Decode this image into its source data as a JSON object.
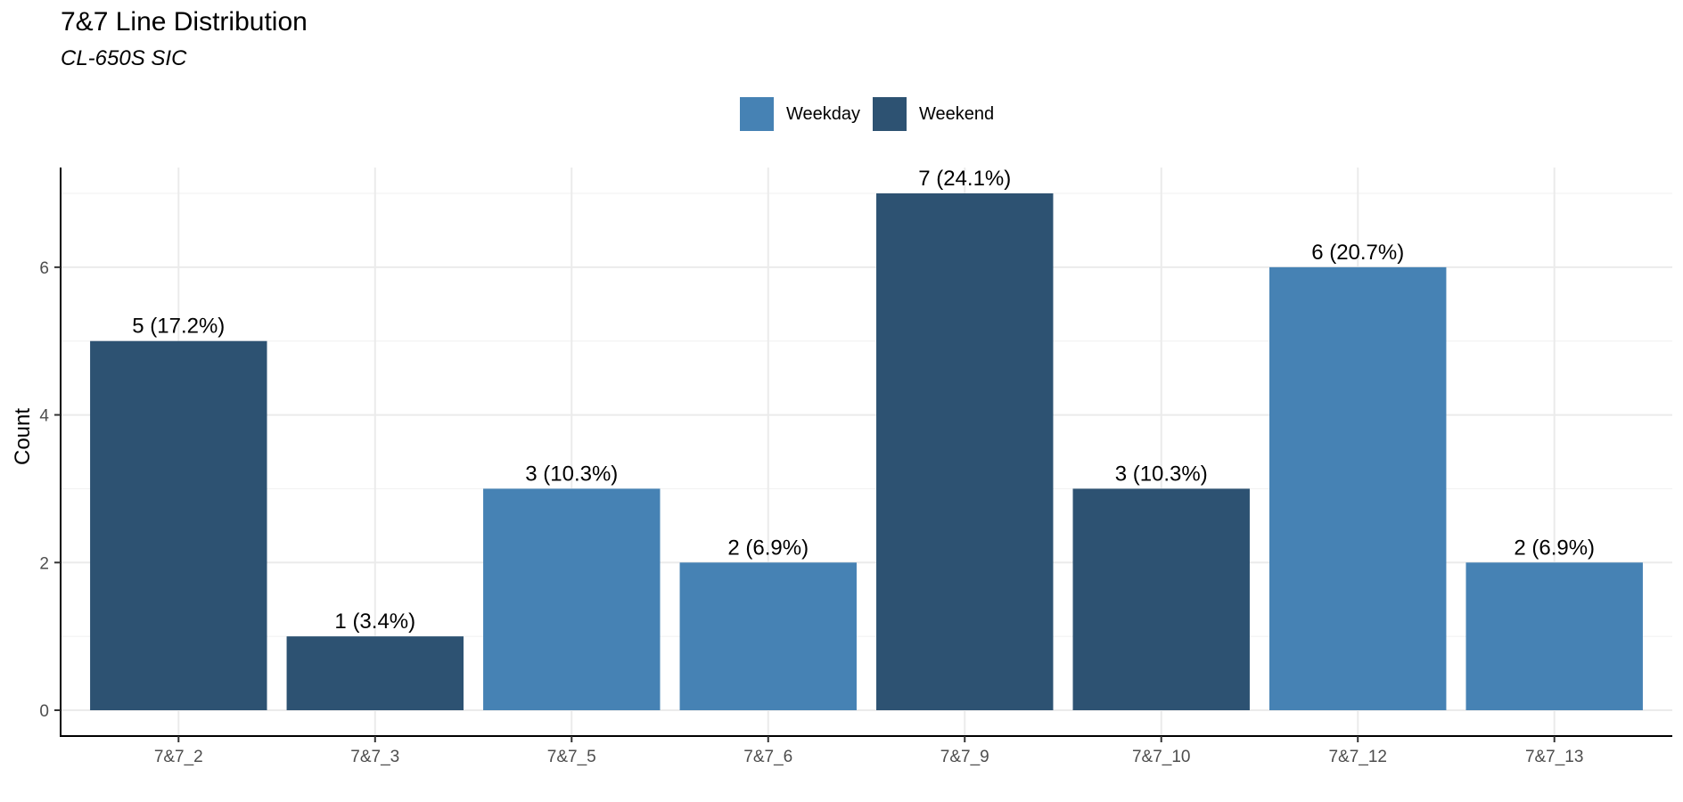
{
  "chart_data": {
    "type": "bar",
    "title": "7&7 Line Distribution",
    "subtitle": "CL-650S SIC",
    "ylabel": "Count",
    "xlabel": "",
    "categories": [
      "7&7_2",
      "7&7_3",
      "7&7_5",
      "7&7_6",
      "7&7_9",
      "7&7_10",
      "7&7_12",
      "7&7_13"
    ],
    "values": [
      5,
      1,
      3,
      2,
      7,
      3,
      6,
      2
    ],
    "groups": [
      "Weekend",
      "Weekend",
      "Weekday",
      "Weekday",
      "Weekend",
      "Weekend",
      "Weekday",
      "Weekday"
    ],
    "data_labels": [
      "5 (17.2%)",
      "1 (3.4%)",
      "3 (10.3%)",
      "2 (6.9%)",
      "7 (24.1%)",
      "3 (10.3%)",
      "6 (20.7%)",
      "2 (6.9%)"
    ],
    "legend": [
      {
        "name": "Weekday",
        "color": "#4682B4"
      },
      {
        "name": "Weekend",
        "color": "#2D5272"
      }
    ],
    "legend_position": "top",
    "ylim": [
      -0.35,
      7.35
    ],
    "yticks": [
      0,
      2,
      4,
      6
    ],
    "grid": true
  }
}
